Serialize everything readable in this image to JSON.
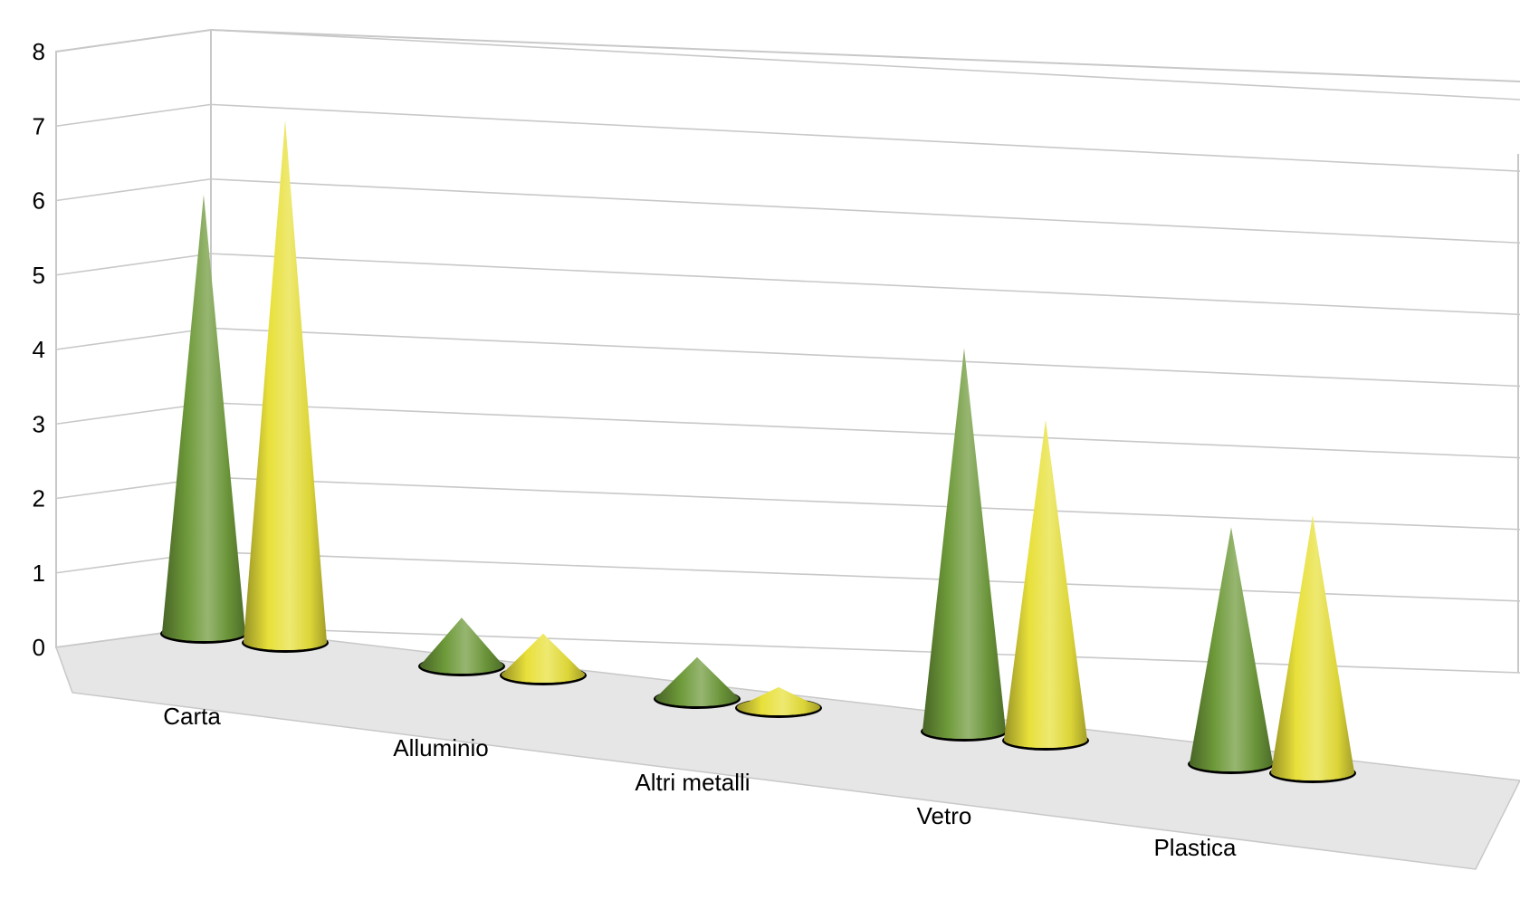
{
  "chart_data": {
    "type": "bar",
    "shape": "cone",
    "view": "3d-perspective",
    "title": "",
    "xlabel": "",
    "ylabel": "",
    "ylim": [
      0,
      8
    ],
    "yticks": [
      "0",
      "1",
      "2",
      "3",
      "4",
      "5",
      "6",
      "7",
      "8"
    ],
    "grid": true,
    "categories": [
      "Carta",
      "Alluminio",
      "Altri metalli",
      "Vetro",
      "Plastica"
    ],
    "series": [
      {
        "color": "#6e9a3a",
        "values": [
          6.3,
          0.7,
          0.6,
          5.5,
          3.4
        ]
      },
      {
        "color": "#e8e03a",
        "values": [
          7.5,
          0.6,
          0.3,
          4.6,
          3.7
        ]
      }
    ],
    "floor_color": "#e6e6e6"
  }
}
